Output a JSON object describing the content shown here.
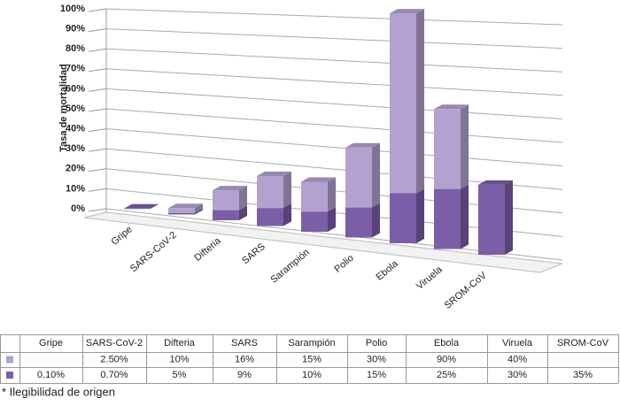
{
  "chart_data": {
    "type": "bar3d_stacked",
    "y_label": "Tasa de mortalidad",
    "categories": [
      "Gripe",
      "SARS-CoV-2",
      "Difteria",
      "SARS",
      "Sarampión",
      "Polio",
      "Ebola",
      "Viruela",
      "SROM-CoV"
    ],
    "series": [
      {
        "color": "#7b5ea7",
        "values": [
          0.1,
          0.7,
          5,
          9,
          10,
          15,
          25,
          30,
          35
        ],
        "value_labels": [
          "0.10%",
          "0.70%",
          "5%",
          "9%",
          "10%",
          "15%",
          "25%",
          "30%",
          "35%"
        ]
      },
      {
        "color": "#b3a2cf",
        "values": [
          null,
          2.5,
          10,
          16,
          15,
          30,
          90,
          40,
          null
        ],
        "value_labels": [
          null,
          "2.50%",
          "10%",
          "16%",
          "15%",
          "30%",
          "90%",
          "40%",
          null
        ]
      }
    ],
    "ylim": [
      0,
      100
    ],
    "yticks": [
      {
        "value": 0,
        "label": "0%"
      },
      {
        "value": 10,
        "label": "10%"
      },
      {
        "value": 20,
        "label": "20%"
      },
      {
        "value": 30,
        "label": "30%"
      },
      {
        "value": 40,
        "label": "40%"
      },
      {
        "value": 50,
        "label": "50%"
      },
      {
        "value": 60,
        "label": "60%"
      },
      {
        "value": 70,
        "label": "70%"
      },
      {
        "value": 80,
        "label": "80%"
      },
      {
        "value": 90,
        "label": "90%"
      },
      {
        "value": 100,
        "label": "100%"
      }
    ],
    "grid": true,
    "footnote": "* Ilegibilidad de origen"
  }
}
